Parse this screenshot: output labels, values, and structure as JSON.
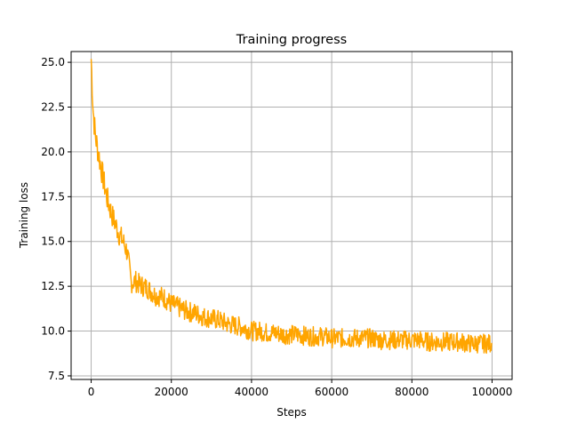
{
  "chart_data": {
    "type": "line",
    "title": "Training progress",
    "xlabel": "Steps",
    "ylabel": "Training loss",
    "xlim": [
      -5000,
      105000
    ],
    "ylim": [
      7.3,
      25.6
    ],
    "xticks": [
      0,
      20000,
      40000,
      60000,
      80000,
      100000
    ],
    "xtick_labels": [
      "0",
      "20000",
      "40000",
      "60000",
      "80000",
      "100000"
    ],
    "yticks": [
      7.5,
      10.0,
      12.5,
      15.0,
      17.5,
      20.0,
      22.5,
      25.0
    ],
    "ytick_labels": [
      "7.5",
      "10.0",
      "12.5",
      "15.0",
      "17.5",
      "20.0",
      "22.5",
      "25.0"
    ],
    "grid": true,
    "legend": "none",
    "colors": {
      "line": "#ffa500",
      "grid": "#b0b0b0",
      "axes": "#000000"
    },
    "series": [
      {
        "color": "#ffa500",
        "x": [
          0,
          500,
          1000,
          1500,
          2000,
          3000,
          4000,
          5000,
          6000,
          7000,
          8000,
          9000,
          10000,
          11000,
          12000,
          14000,
          16000,
          18000,
          20000,
          22000,
          24000,
          26000,
          28000,
          30000,
          32000,
          34000,
          36000,
          38000,
          40000,
          42000,
          44000,
          46000,
          48000,
          50000,
          52000,
          54000,
          56000,
          58000,
          60000,
          62000,
          64000,
          66000,
          68000,
          70000,
          72000,
          74000,
          76000,
          78000,
          80000,
          82000,
          84000,
          86000,
          88000,
          90000,
          92000,
          94000,
          96000,
          98000,
          100000
        ],
        "y": [
          25.2,
          22.3,
          21.0,
          20.3,
          19.7,
          18.5,
          17.4,
          16.6,
          16.0,
          15.4,
          15.0,
          14.4,
          12.7,
          12.8,
          12.6,
          12.4,
          12.0,
          11.9,
          11.5,
          11.3,
          11.1,
          11.0,
          10.8,
          10.7,
          10.6,
          10.4,
          10.3,
          10.2,
          10.0,
          10.0,
          9.9,
          9.9,
          9.8,
          9.8,
          9.8,
          9.7,
          9.7,
          9.7,
          9.6,
          9.6,
          9.6,
          9.6,
          9.6,
          9.6,
          9.5,
          9.5,
          9.5,
          9.5,
          9.5,
          9.5,
          9.4,
          9.4,
          9.4,
          9.4,
          9.4,
          9.3,
          9.3,
          9.3,
          9.3
        ]
      }
    ]
  }
}
